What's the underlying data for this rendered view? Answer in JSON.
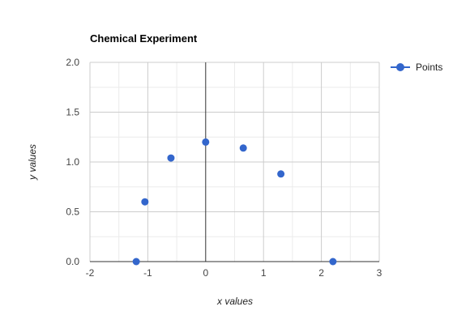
{
  "chart_data": {
    "type": "scatter",
    "title": "Chemical Experiment",
    "xlabel": "x values",
    "ylabel": "y values",
    "xlim": [
      -2,
      3
    ],
    "ylim": [
      0,
      2
    ],
    "x_ticks": [
      -2,
      -1,
      0,
      1,
      2,
      3
    ],
    "y_ticks": [
      "0.0",
      "0.5",
      "1.0",
      "1.5",
      "2.0"
    ],
    "x_minor_step": 0.5,
    "y_minor_step": 0.25,
    "grid": true,
    "legend_position": "right",
    "series": [
      {
        "name": "Points",
        "color": "#3366cc",
        "points": [
          {
            "x": -1.2,
            "y": 0.0
          },
          {
            "x": -1.05,
            "y": 0.6
          },
          {
            "x": -0.6,
            "y": 1.04
          },
          {
            "x": 0.0,
            "y": 1.2
          },
          {
            "x": 0.65,
            "y": 1.14
          },
          {
            "x": 1.3,
            "y": 0.88
          },
          {
            "x": 2.2,
            "y": 0.0
          }
        ]
      }
    ]
  }
}
